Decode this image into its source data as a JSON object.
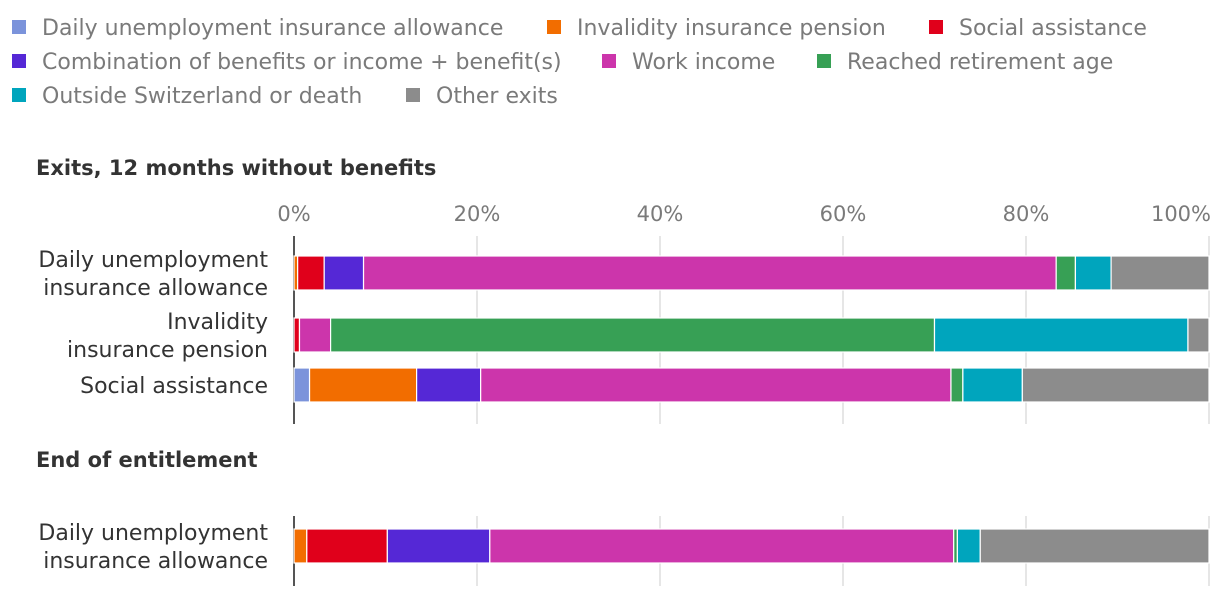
{
  "chart_data": {
    "type": "bar",
    "orientation": "horizontal",
    "stacked": true,
    "xlim": [
      0,
      100
    ],
    "ticks": [
      "0%",
      "20%",
      "40%",
      "60%",
      "80%",
      "100%"
    ],
    "tick_values": [
      0,
      20,
      40,
      60,
      80,
      100
    ],
    "series": [
      {
        "name": "Daily unemployment insurance allowance",
        "color": "#7b93db"
      },
      {
        "name": "Invalidity insurance pension",
        "color": "#f26d00"
      },
      {
        "name": "Social assistance",
        "color": "#e0001b"
      },
      {
        "name": "Combination of benefits or income + benefit(s)",
        "color": "#5528d6"
      },
      {
        "name": "Work income",
        "color": "#cc35ab"
      },
      {
        "name": "Reached retirement age",
        "color": "#37a055"
      },
      {
        "name": "Outside Switzerland or death",
        "color": "#00a5bd"
      },
      {
        "name": "Other exits",
        "color": "#8c8c8c"
      }
    ],
    "panels": [
      {
        "title": "Exits, 12 months without benefits",
        "rows": [
          {
            "label_lines": [
              "Daily unemployment",
              "insurance allowance"
            ],
            "values": [
              0,
              0.4,
              2.9,
              4.3,
              75.7,
              2.1,
              3.9,
              10.7
            ]
          },
          {
            "label_lines": [
              "Invalidity",
              "insurance pension"
            ],
            "values": [
              0,
              0,
              0.6,
              0,
              3.4,
              66.0,
              27.7,
              2.3
            ]
          },
          {
            "label_lines": [
              "Social assistance"
            ],
            "values": [
              1.7,
              11.7,
              0,
              7.0,
              51.4,
              1.3,
              6.5,
              20.4
            ]
          }
        ]
      },
      {
        "title": "End of entitlement",
        "rows": [
          {
            "label_lines": [
              "Daily unemployment",
              "insurance allowance"
            ],
            "values": [
              0,
              1.4,
              8.8,
              11.2,
              50.7,
              0.4,
              2.5,
              25.0
            ]
          }
        ]
      }
    ]
  }
}
